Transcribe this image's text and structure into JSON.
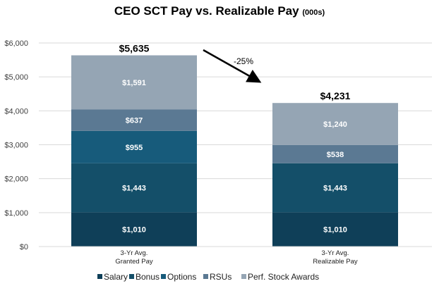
{
  "chart_data": {
    "type": "bar",
    "stacked": true,
    "title": "CEO SCT Pay vs. Realizable Pay",
    "title_unit": "(000s)",
    "categories": [
      "3-Yr Avg.\nGranted Pay",
      "3-Yr Avg.\nRealizable Pay"
    ],
    "series": [
      {
        "name": "Salary",
        "values": [
          1010,
          1010
        ],
        "labels": [
          "$1,010",
          "$1,010"
        ],
        "color": "#0f3f58"
      },
      {
        "name": "Bonus",
        "values": [
          1443,
          1443
        ],
        "labels": [
          "$1,443",
          "$1,443"
        ],
        "color": "#144f69"
      },
      {
        "name": "Options",
        "values": [
          955,
          0
        ],
        "labels": [
          "$955",
          ""
        ],
        "color": "#175b7b"
      },
      {
        "name": "RSUs",
        "values": [
          637,
          538
        ],
        "labels": [
          "$637",
          "$538"
        ],
        "color": "#5b7993"
      },
      {
        "name": "Perf. Stock Awards",
        "values": [
          1591,
          1240
        ],
        "labels": [
          "$1,591",
          "$1,240"
        ],
        "color": "#95a5b4"
      }
    ],
    "totals": [
      "$5,635",
      "$4,231"
    ],
    "annotation": "-25%",
    "ylim": [
      0,
      6000
    ],
    "yticks": [
      0,
      1000,
      2000,
      3000,
      4000,
      5000,
      6000
    ],
    "ytick_labels": [
      "$0",
      "$1,000",
      "$2,000",
      "$3,000",
      "$4,000",
      "$5,000",
      "$6,000"
    ],
    "grid": true,
    "legend": "bottom"
  }
}
